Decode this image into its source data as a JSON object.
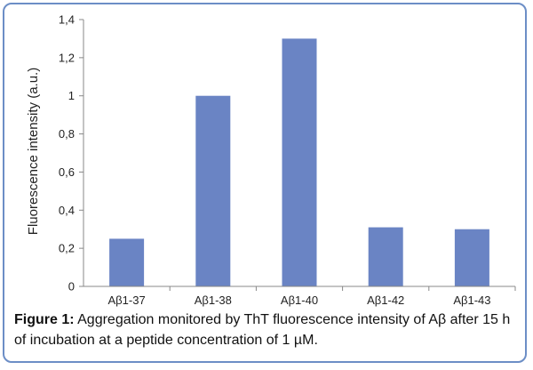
{
  "chart_data": {
    "type": "bar",
    "categories": [
      "Aβ1-37",
      "Aβ1-38",
      "Aβ1-40",
      "Aβ1-42",
      "Aβ1-43"
    ],
    "values": [
      0.25,
      1.0,
      1.3,
      0.31,
      0.3
    ],
    "ylabel": "Fluorescence intensity (a.u.)",
    "xlabel": "",
    "ylim": [
      0,
      1.4
    ],
    "yticks": [
      "0",
      "0,2",
      "0,4",
      "0,6",
      "0,8",
      "1",
      "1,2",
      "1,4"
    ],
    "bar_color": "#6a84c4",
    "grid": false
  },
  "caption": {
    "label": "Figure 1:",
    "text": " Aggregation monitored by ThT fluorescence intensity of Aβ after 15 h of incubation at a peptide concentration of 1 µM."
  },
  "colors": {
    "frame": "#6c8ec6",
    "axis": "#888888"
  }
}
